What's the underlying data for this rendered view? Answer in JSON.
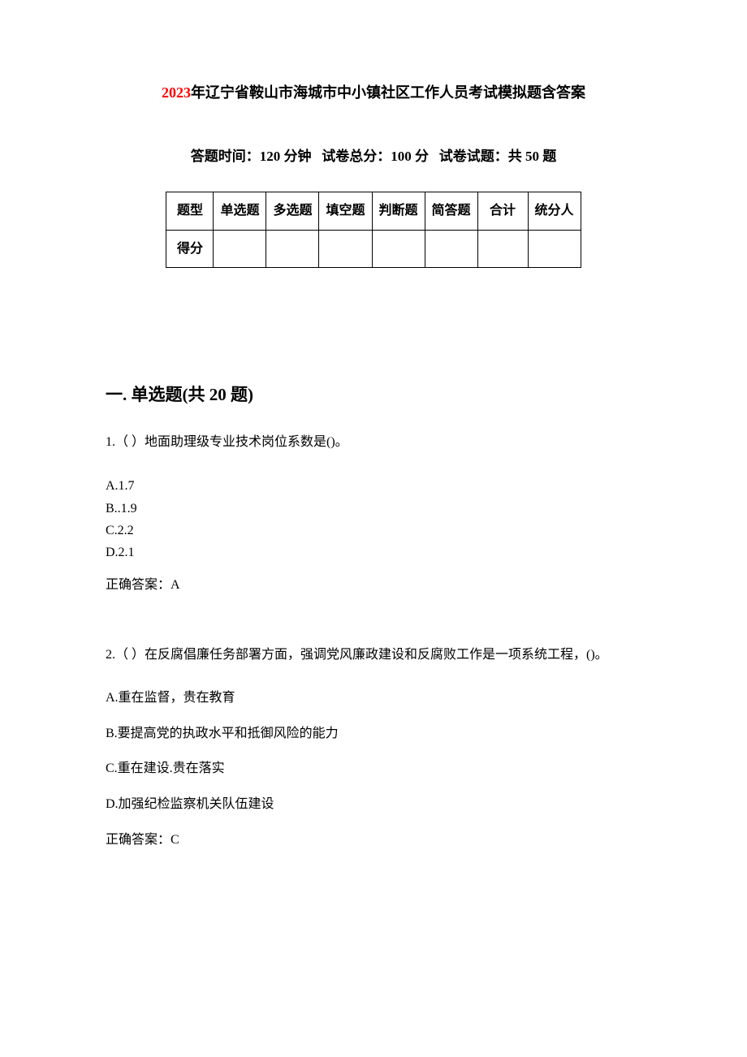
{
  "title": {
    "year_prefix": "2023",
    "rest": "年辽宁省鞍山市海城市中小镇社区工作人员考试模拟题含答案"
  },
  "exam_info": {
    "time_label": "答题时间：",
    "time_value": "120 分钟",
    "total_label": "试卷总分：",
    "total_value": "100 分",
    "count_label": "试卷试题：",
    "count_value": "共 50 题"
  },
  "score_table": {
    "row1": [
      "题型",
      "单选题",
      "多选题",
      "填空题",
      "判断题",
      "简答题",
      "合计",
      "统分人"
    ],
    "row2_label": "得分"
  },
  "section1": {
    "heading": "一. 单选题(共 20 题)",
    "q1": {
      "text": "1.（ ）地面助理级专业技术岗位系数是()。",
      "optA": "A.1.7",
      "optB": "B..1.9",
      "optC": "C.2.2",
      "optD": "D.2.1",
      "answer": "正确答案：A"
    },
    "q2": {
      "text": "2.（ ）在反腐倡廉任务部署方面，强调党风廉政建设和反腐败工作是一项系统工程，()。",
      "optA": "A.重在监督，贵在教育",
      "optB": "B.要提高党的执政水平和抵御风险的能力",
      "optC": "C.重在建设.贵在落实",
      "optD": "D.加强纪检监察机关队伍建设",
      "answer": "正确答案：C"
    }
  },
  "colors": {
    "title_highlight": "#ff0000",
    "text": "#000000",
    "background": "#ffffff",
    "border": "#000000"
  },
  "typography": {
    "body_fontsize": 16,
    "title_fontsize": 18,
    "heading_fontsize": 21,
    "info_fontsize": 17
  }
}
